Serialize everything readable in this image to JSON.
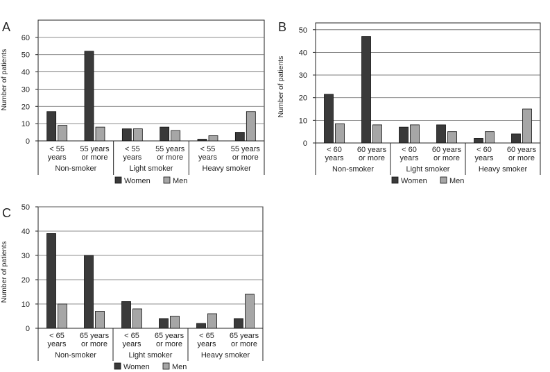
{
  "colors": {
    "women": "#3a3a3a",
    "men": "#a6a6a6",
    "axis": "#222222",
    "grid": "#666666"
  },
  "chart_data": [
    {
      "panel": "A",
      "type": "bar",
      "ylabel": "Number of patients",
      "ylim": [
        0,
        70
      ],
      "yticks": [
        0,
        10,
        20,
        30,
        40,
        50,
        60
      ],
      "groups": [
        {
          "label": "Non-smoker",
          "categories": [
            [
              "< 55",
              "years"
            ],
            [
              "55 years",
              "or more"
            ]
          ]
        },
        {
          "label": "Light smoker",
          "categories": [
            [
              "< 55",
              "years"
            ],
            [
              "55 years",
              "or more"
            ]
          ]
        },
        {
          "label": "Heavy smoker",
          "categories": [
            [
              "< 55",
              "years"
            ],
            [
              "55 years",
              "or more"
            ]
          ]
        }
      ],
      "series": [
        {
          "name": "Women",
          "values": [
            17,
            52,
            7,
            8,
            1,
            5
          ]
        },
        {
          "name": "Men",
          "values": [
            9,
            8,
            7,
            6,
            3,
            17
          ]
        }
      ]
    },
    {
      "panel": "B",
      "type": "bar",
      "ylabel": "Number of patients",
      "ylim": [
        0,
        53
      ],
      "yticks": [
        0,
        10,
        20,
        30,
        40,
        50
      ],
      "groups": [
        {
          "label": "Non-smoker",
          "categories": [
            [
              "< 60",
              "years"
            ],
            [
              "60 years",
              "or more"
            ]
          ]
        },
        {
          "label": "Light smoker",
          "categories": [
            [
              "< 60",
              "years"
            ],
            [
              "60 years",
              "or more"
            ]
          ]
        },
        {
          "label": "Heavy smoker",
          "categories": [
            [
              "< 60",
              "years"
            ],
            [
              "60 years",
              "or more"
            ]
          ]
        }
      ],
      "series": [
        {
          "name": "Women",
          "values": [
            21.5,
            47,
            7,
            8,
            2,
            4
          ]
        },
        {
          "name": "Men",
          "values": [
            8.5,
            8,
            8,
            5,
            5,
            15
          ]
        }
      ]
    },
    {
      "panel": "C",
      "type": "bar",
      "ylabel": "Number of patients",
      "ylim": [
        0,
        50
      ],
      "yticks": [
        0,
        10,
        20,
        30,
        40,
        50
      ],
      "groups": [
        {
          "label": "Non-smoker",
          "categories": [
            [
              "< 65",
              "years"
            ],
            [
              "65 years",
              "or more"
            ]
          ]
        },
        {
          "label": "Light smoker",
          "categories": [
            [
              "< 65",
              "years"
            ],
            [
              "65 years",
              "or more"
            ]
          ]
        },
        {
          "label": "Heavy smoker",
          "categories": [
            [
              "< 65",
              "years"
            ],
            [
              "65 years",
              "or more"
            ]
          ]
        }
      ],
      "series": [
        {
          "name": "Women",
          "values": [
            39,
            30,
            11,
            4,
            2,
            4
          ]
        },
        {
          "name": "Men",
          "values": [
            10,
            7,
            8,
            5,
            6,
            14
          ]
        }
      ]
    }
  ]
}
